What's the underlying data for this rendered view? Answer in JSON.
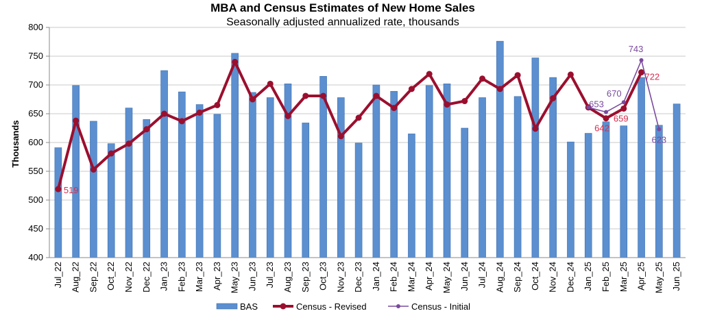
{
  "chart_data": {
    "type": "bar",
    "title": "MBA and Census Estimates of New Home Sales",
    "subtitle": "Seasonally adjusted annualized rate, thousands",
    "xlabel": "",
    "ylabel": "Thousands",
    "ylim": [
      400,
      800
    ],
    "yticks": [
      "400",
      "450",
      "500",
      "550",
      "600",
      "650",
      "700",
      "750",
      "800"
    ],
    "grid": true,
    "legend": "bottom",
    "categories": [
      "Jul_22",
      "Aug_22",
      "Sep_22",
      "Oct_22",
      "Nov_22",
      "Dec_22",
      "Jan_23",
      "Feb_23",
      "Mar_23",
      "Apr_23",
      "May_23",
      "Jun_23",
      "Jul_23",
      "Aug_23",
      "Sep_23",
      "Oct_23",
      "Nov_23",
      "Dec_23",
      "Jan_24",
      "Feb_24",
      "Mar_24",
      "Apr_24",
      "May_24",
      "Jun_24",
      "Jul_24",
      "Aug_24",
      "Sep_24",
      "Oct_24",
      "Nov_24",
      "Dec_24",
      "Jan_25",
      "Feb_25",
      "Mar_25",
      "Apr_25",
      "May_25",
      "Jun_25"
    ],
    "series": [
      {
        "name": "BAS",
        "kind": "bar",
        "color": "#5b8fd0",
        "values": [
          591,
          699,
          637,
          598,
          660,
          640,
          725,
          688,
          666,
          649,
          755,
          687,
          678,
          702,
          634,
          715,
          678,
          599,
          700,
          689,
          615,
          699,
          702,
          625,
          678,
          776,
          680,
          747,
          713,
          601,
          616,
          636,
          629,
          713,
          630,
          667
        ]
      },
      {
        "name": "Census - Revised",
        "kind": "line",
        "color": "#9b0f2e",
        "values": [
          519,
          638,
          553,
          581,
          598,
          623,
          650,
          637,
          652,
          665,
          740,
          675,
          702,
          646,
          681,
          681,
          611,
          643,
          681,
          660,
          693,
          719,
          666,
          672,
          711,
          693,
          717,
          624,
          677,
          718,
          661,
          642,
          659,
          722,
          null,
          null
        ]
      },
      {
        "name": "Census - Initial",
        "kind": "line",
        "color": "#7a4a9e",
        "values": [
          null,
          null,
          null,
          null,
          null,
          null,
          null,
          null,
          null,
          null,
          null,
          null,
          null,
          null,
          null,
          null,
          null,
          null,
          null,
          null,
          null,
          null,
          null,
          null,
          null,
          null,
          null,
          null,
          null,
          null,
          661,
          653,
          670,
          743,
          623,
          null
        ]
      }
    ],
    "annotations": [
      {
        "text": "519",
        "series": "Census - Revised",
        "index": 0,
        "color": "#d62d4e"
      },
      {
        "text": "642",
        "series": "Census - Revised",
        "index": 31,
        "color": "#d62d4e"
      },
      {
        "text": "659",
        "series": "Census - Revised",
        "index": 32,
        "color": "#d62d4e"
      },
      {
        "text": "722",
        "series": "Census - Revised",
        "index": 33,
        "color": "#d62d4e"
      },
      {
        "text": "653",
        "series": "Census - Initial",
        "index": 31,
        "color": "#7a4a9e"
      },
      {
        "text": "670",
        "series": "Census - Initial",
        "index": 32,
        "color": "#7a4a9e"
      },
      {
        "text": "743",
        "series": "Census - Initial",
        "index": 33,
        "color": "#7a4a9e"
      },
      {
        "text": "623",
        "series": "Census - Initial",
        "index": 34,
        "color": "#7a4a9e"
      }
    ]
  }
}
